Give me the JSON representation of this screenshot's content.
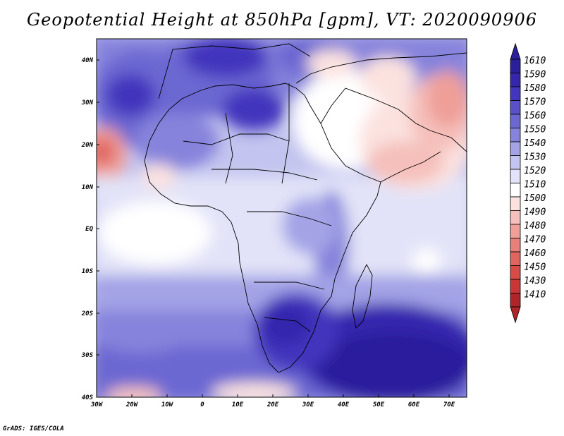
{
  "title": "Geopotential Height at 850hPa [gpm], VT: 2020090906",
  "footer": "GrADS: IGES/COLA",
  "map": {
    "lon_range": [
      -30,
      75
    ],
    "lat_range": [
      -40,
      45
    ],
    "lon_ticks": [
      "30W",
      "20W",
      "10W",
      "0",
      "10E",
      "20E",
      "30E",
      "40E",
      "50E",
      "60E",
      "70E"
    ],
    "lat_ticks": [
      "40N",
      "30N",
      "20N",
      "10N",
      "EQ",
      "10S",
      "20S",
      "30S",
      "40S"
    ]
  },
  "colorbar": {
    "levels": [
      "1610",
      "1590",
      "1580",
      "1570",
      "1560",
      "1550",
      "1540",
      "1530",
      "1520",
      "1510",
      "1500",
      "1490",
      "1480",
      "1470",
      "1460",
      "1450",
      "1430",
      "1410"
    ],
    "colors": [
      "#2b1f9c",
      "#3626ae",
      "#4335bd",
      "#5a50c9",
      "#6c68d2",
      "#8683dc",
      "#a3a3e6",
      "#c3c4ef",
      "#e2e3f8",
      "#ffffff",
      "#fbe2df",
      "#f5c0bb",
      "#ef9f98",
      "#e87f79",
      "#e2645f",
      "#d84b47",
      "#c83635",
      "#b02528"
    ]
  }
}
